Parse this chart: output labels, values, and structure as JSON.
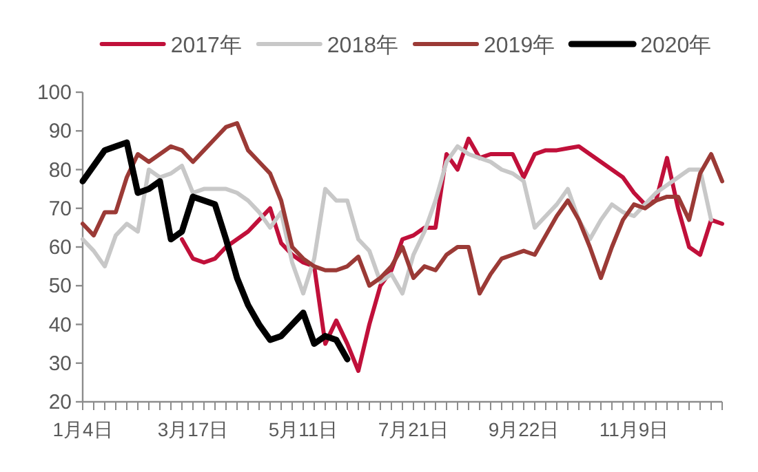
{
  "chart_data": {
    "type": "line",
    "categories": [
      "1月4日",
      null,
      null,
      null,
      null,
      null,
      null,
      null,
      null,
      null,
      "3月17日",
      null,
      null,
      null,
      null,
      null,
      null,
      null,
      null,
      null,
      "5月11日",
      null,
      null,
      null,
      null,
      null,
      null,
      null,
      null,
      null,
      "7月21日",
      null,
      null,
      null,
      null,
      null,
      null,
      null,
      null,
      null,
      "9月22日",
      null,
      null,
      null,
      null,
      null,
      null,
      null,
      null,
      null,
      "11月9日",
      null,
      null,
      null,
      null,
      null,
      null,
      null,
      null
    ],
    "series": [
      {
        "name": "2017年",
        "color": "#c0103a",
        "values": [
          null,
          null,
          null,
          null,
          null,
          null,
          null,
          null,
          null,
          62,
          57,
          56,
          57,
          60,
          62,
          64,
          67,
          70,
          61,
          58,
          56,
          55,
          35,
          41,
          35,
          28,
          40,
          50,
          54,
          62,
          63,
          65,
          65,
          84,
          80,
          88,
          83,
          84,
          84,
          84,
          78,
          84,
          85,
          85,
          85.5,
          86,
          84,
          82,
          80,
          78,
          74,
          71,
          72,
          83,
          70,
          60,
          58,
          67,
          66
        ]
      },
      {
        "name": "2018年",
        "color": "#c8c8c8",
        "values": [
          62,
          59,
          55,
          63,
          66,
          64,
          80,
          78,
          79,
          81,
          74,
          75,
          75,
          75,
          74,
          72,
          69,
          65,
          69,
          56,
          48,
          57,
          75,
          72,
          72,
          62,
          59,
          51,
          53,
          48,
          58,
          64,
          72,
          82,
          86,
          84,
          83,
          82,
          80,
          79,
          77,
          65,
          68,
          71,
          75,
          67,
          62,
          67,
          71,
          69,
          68,
          71,
          74,
          76,
          78,
          80,
          80,
          67,
          null
        ]
      },
      {
        "name": "2019年",
        "color": "#9b3a36",
        "values": [
          66,
          63,
          69,
          69,
          78,
          84,
          82,
          84,
          86,
          85,
          82,
          85,
          88,
          91,
          92,
          85,
          82,
          79,
          72,
          60,
          57,
          55,
          54,
          54,
          55,
          57.5,
          50,
          52,
          55,
          60,
          52,
          55,
          54,
          58,
          60,
          60,
          48,
          53,
          57,
          58,
          59,
          58,
          63,
          68,
          72,
          67,
          60,
          52,
          60,
          67,
          71,
          70,
          72,
          73,
          73,
          67,
          79,
          84,
          77
        ]
      },
      {
        "name": "2020年",
        "color": "#000000",
        "values": [
          77,
          81,
          85,
          86,
          87,
          74,
          75,
          77,
          62,
          64,
          73,
          72,
          71,
          62,
          52,
          45,
          40,
          36,
          37,
          40,
          43,
          35,
          37,
          36,
          31,
          null,
          null,
          null,
          null,
          null,
          null,
          null,
          null,
          null,
          null,
          null,
          null,
          null,
          null,
          null,
          null,
          null,
          null,
          null,
          null,
          null,
          null,
          null,
          null,
          null,
          null,
          null,
          null,
          null,
          null,
          null,
          null,
          null,
          null
        ]
      }
    ],
    "ylim": [
      20,
      100
    ],
    "yticks": [
      20,
      30,
      40,
      50,
      60,
      70,
      80,
      90,
      100
    ],
    "legend": "top",
    "grid": false,
    "marker": "none",
    "line_style": "solid"
  }
}
